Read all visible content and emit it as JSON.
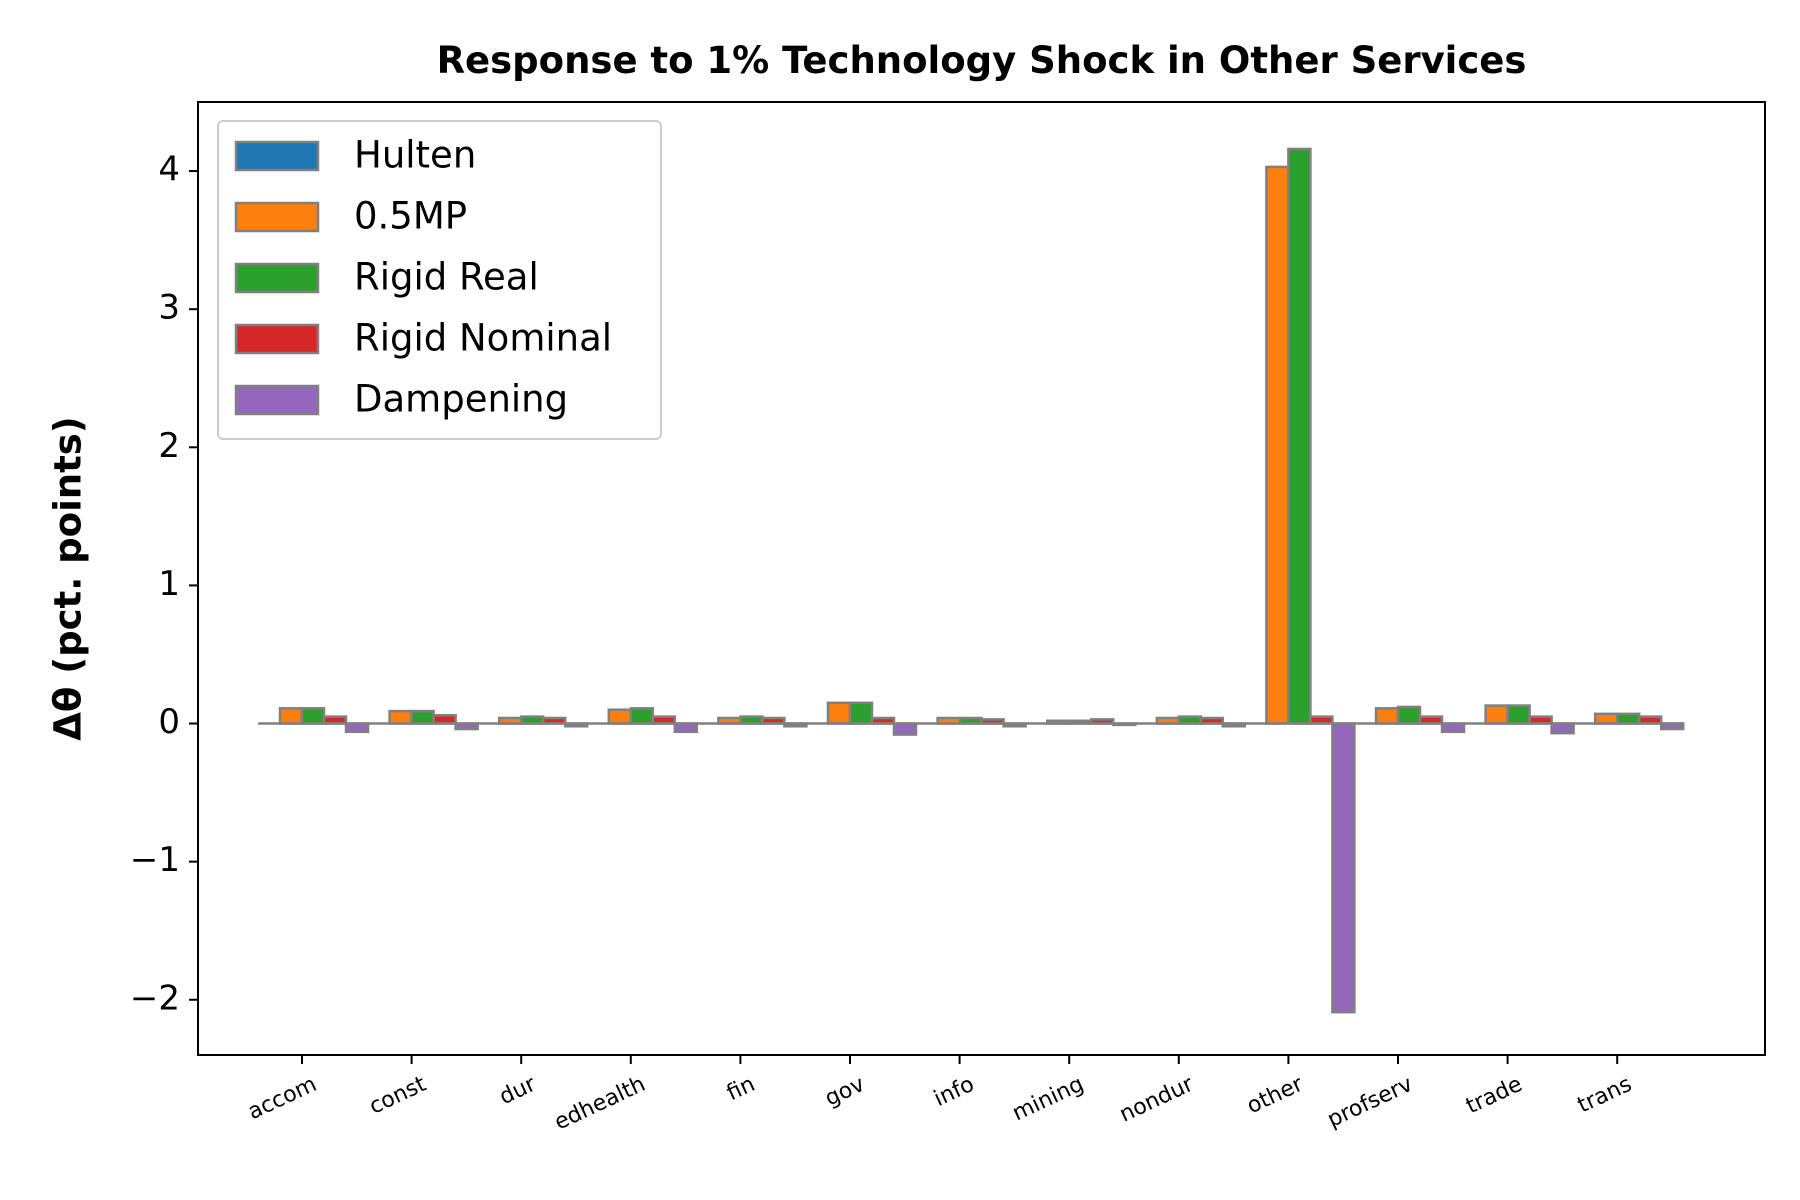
{
  "chart_data": {
    "type": "bar",
    "title": "Response to 1% Technology Shock in Other Services",
    "ylabel": "Δθ  (pct. points)",
    "xlabel": "",
    "ylim": [
      -2.4,
      4.5
    ],
    "yticks": [
      -2,
      -1,
      0,
      1,
      2,
      3,
      4
    ],
    "ytick_labels": [
      "−2",
      "−1",
      "0",
      "1",
      "2",
      "3",
      "4"
    ],
    "categories": [
      "accom",
      "const",
      "dur",
      "edhealth",
      "fin",
      "gov",
      "info",
      "mining",
      "nondur",
      "other",
      "profserv",
      "trade",
      "trans"
    ],
    "grid": false,
    "legend_position": "top-left",
    "bar_edge_color": "#808080",
    "series": [
      {
        "name": "Hulten",
        "color": "#1f77b4",
        "values": [
          0,
          0,
          0,
          0,
          0,
          0,
          0,
          0,
          0,
          0,
          0,
          0,
          0
        ]
      },
      {
        "name": "0.5MP",
        "color": "#ff7f0e",
        "values": [
          0.11,
          0.09,
          0.04,
          0.1,
          0.04,
          0.15,
          0.04,
          0.02,
          0.04,
          4.03,
          0.11,
          0.13,
          0.07
        ]
      },
      {
        "name": "Rigid Real",
        "color": "#2ca02c",
        "values": [
          0.11,
          0.09,
          0.05,
          0.11,
          0.05,
          0.15,
          0.04,
          0.02,
          0.05,
          4.16,
          0.12,
          0.13,
          0.07
        ]
      },
      {
        "name": "Rigid Nominal",
        "color": "#d62728",
        "values": [
          0.05,
          0.06,
          0.04,
          0.05,
          0.04,
          0.04,
          0.03,
          0.03,
          0.04,
          0.05,
          0.05,
          0.05,
          0.05
        ]
      },
      {
        "name": "Dampening",
        "color": "#9467bd",
        "values": [
          -0.06,
          -0.04,
          -0.02,
          -0.06,
          -0.02,
          -0.08,
          -0.02,
          -0.01,
          -0.02,
          -2.09,
          -0.06,
          -0.07,
          -0.04
        ]
      }
    ]
  }
}
